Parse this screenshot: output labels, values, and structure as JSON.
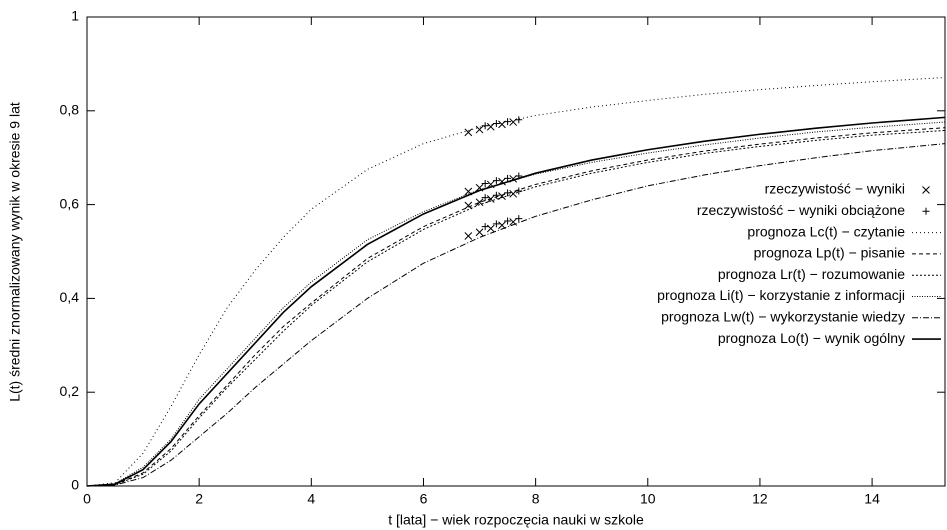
{
  "chart_data": {
    "type": "line",
    "x_label": "t [lata] − wiek rozpoczęcia nauki w szkole",
    "y_label": "L(t) średni znormalizowany wynik w okresie 9 lat",
    "xlim": [
      0,
      15.3
    ],
    "ylim": [
      0,
      1
    ],
    "xticks": [
      0,
      2,
      4,
      6,
      8,
      10,
      12,
      14
    ],
    "yticks": [
      0,
      {
        "value": 0.2,
        "label": "0,2"
      },
      {
        "value": 0.4,
        "label": "0,4"
      },
      {
        "value": 0.6,
        "label": "0,6"
      },
      {
        "value": 0.8,
        "label": "0,8"
      },
      1
    ],
    "legend": "right",
    "x": [
      0,
      0.5,
      1,
      1.5,
      2,
      2.5,
      3,
      3.5,
      4,
      5,
      6,
      7,
      8,
      9,
      10,
      11,
      12,
      13,
      14,
      15.3
    ],
    "series": [
      {
        "name": "rzeczywistość − wyniki",
        "color": "#000000",
        "marker": "x",
        "x": [
          6.8,
          7.0,
          7.2,
          7.4,
          7.6,
          6.8,
          7.0,
          7.2,
          7.4,
          7.6,
          6.8,
          7.0,
          7.2,
          7.4,
          7.6,
          6.8,
          7.0,
          7.2,
          7.4,
          7.6
        ],
        "values": [
          0.754,
          0.76,
          0.766,
          0.771,
          0.776,
          0.628,
          0.636,
          0.643,
          0.649,
          0.655,
          0.598,
          0.605,
          0.612,
          0.618,
          0.623,
          0.533,
          0.541,
          0.549,
          0.556,
          0.563
        ]
      },
      {
        "name": "rzeczywistość − wyniki obciążone",
        "color": "#000000",
        "marker": "+",
        "x": [
          7.1,
          7.3,
          7.5,
          7.7,
          7.1,
          7.3,
          7.5,
          7.7,
          7.1,
          7.3,
          7.5,
          7.7,
          7.1,
          7.3,
          7.5,
          7.7
        ],
        "values": [
          0.768,
          0.773,
          0.777,
          0.781,
          0.645,
          0.651,
          0.656,
          0.661,
          0.615,
          0.62,
          0.625,
          0.629,
          0.553,
          0.559,
          0.565,
          0.57
        ]
      },
      {
        "name": "prognoza Lc(t) − czytanie",
        "color": "#000000",
        "dash": "1,3",
        "values": [
          0,
          0.007,
          0.07,
          0.17,
          0.28,
          0.38,
          0.46,
          0.53,
          0.59,
          0.675,
          0.73,
          0.765,
          0.79,
          0.808,
          0.822,
          0.835,
          0.845,
          0.854,
          0.862,
          0.871
        ]
      },
      {
        "name": "prognoza Lp(t) − pisanie",
        "color": "#000000",
        "dash": "4,3",
        "values": [
          0,
          0.003,
          0.028,
          0.08,
          0.15,
          0.215,
          0.28,
          0.34,
          0.39,
          0.485,
          0.553,
          0.605,
          0.643,
          0.672,
          0.695,
          0.714,
          0.729,
          0.742,
          0.753,
          0.764
        ]
      },
      {
        "name": "prognoza Lr(t) − rozumowanie",
        "color": "#000000",
        "dash": "2,2",
        "values": [
          0,
          0.003,
          0.025,
          0.075,
          0.145,
          0.21,
          0.27,
          0.33,
          0.385,
          0.478,
          0.547,
          0.6,
          0.638,
          0.667,
          0.69,
          0.709,
          0.724,
          0.737,
          0.748,
          0.758
        ]
      },
      {
        "name": "prognoza Li(t) − korzystanie z informacji",
        "color": "#000000",
        "dash": "1,1.5",
        "values": [
          0,
          0.005,
          0.04,
          0.1,
          0.185,
          0.25,
          0.315,
          0.38,
          0.435,
          0.525,
          0.585,
          0.632,
          0.665,
          0.69,
          0.71,
          0.727,
          0.742,
          0.755,
          0.765,
          0.776
        ]
      },
      {
        "name": "prognoza Lw(t) − wykorzystanie wiedzy",
        "color": "#000000",
        "dash": "6,2,1,2",
        "values": [
          0,
          0.002,
          0.018,
          0.055,
          0.105,
          0.155,
          0.21,
          0.26,
          0.31,
          0.4,
          0.475,
          0.53,
          0.575,
          0.61,
          0.64,
          0.663,
          0.683,
          0.7,
          0.715,
          0.73
        ]
      },
      {
        "name": "prognoza Lo(t) − wynik ogólny",
        "color": "#000000",
        "width": 1.6,
        "values": [
          0,
          0.004,
          0.035,
          0.095,
          0.175,
          0.24,
          0.305,
          0.37,
          0.425,
          0.515,
          0.58,
          0.63,
          0.667,
          0.695,
          0.717,
          0.735,
          0.75,
          0.763,
          0.774,
          0.786
        ]
      }
    ]
  }
}
